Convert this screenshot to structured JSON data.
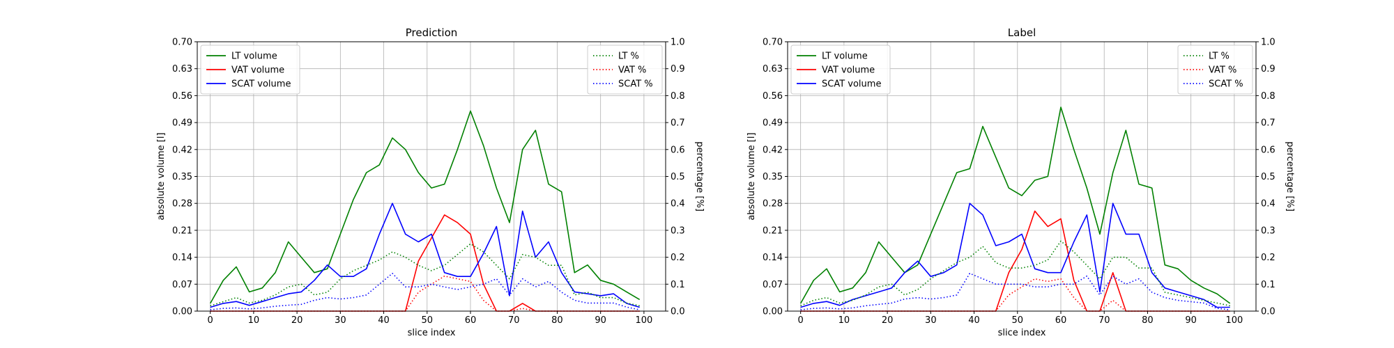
{
  "chart_data": [
    {
      "type": "line",
      "title": "Prediction",
      "xlabel": "slice index",
      "ylabel": "absolute volume [l]",
      "y2label": "percentage [%]",
      "xlim": [
        -3,
        105
      ],
      "ylim": [
        0,
        0.7
      ],
      "y2lim": [
        0,
        1.0
      ],
      "xticks": [
        "0",
        "10",
        "20",
        "30",
        "40",
        "50",
        "60",
        "70",
        "80",
        "90",
        "100"
      ],
      "yticks": [
        "0.00",
        "0.07",
        "0.14",
        "0.21",
        "0.28",
        "0.35",
        "0.42",
        "0.49",
        "0.56",
        "0.63",
        "0.70"
      ],
      "y2ticks": [
        "0.0",
        "0.1",
        "0.2",
        "0.3",
        "0.4",
        "0.5",
        "0.6",
        "0.7",
        "0.8",
        "0.9",
        "1.0"
      ],
      "grid": true,
      "legend_left_position": "top-left",
      "legend_right_position": "top-right",
      "x": [
        0,
        3,
        6,
        9,
        12,
        15,
        18,
        21,
        24,
        27,
        30,
        33,
        36,
        39,
        42,
        45,
        48,
        51,
        54,
        57,
        60,
        63,
        66,
        69,
        72,
        75,
        78,
        81,
        84,
        87,
        90,
        93,
        96,
        99
      ],
      "series": [
        {
          "name": "LT volume",
          "axis": "left",
          "color": "#008000",
          "style": "solid",
          "values": [
            0.02,
            0.08,
            0.115,
            0.05,
            0.06,
            0.1,
            0.18,
            0.14,
            0.1,
            0.11,
            0.2,
            0.29,
            0.36,
            0.38,
            0.45,
            0.42,
            0.36,
            0.32,
            0.33,
            0.42,
            0.52,
            0.43,
            0.32,
            0.23,
            0.42,
            0.47,
            0.33,
            0.31,
            0.1,
            0.12,
            0.08,
            0.07,
            0.05,
            0.03
          ]
        },
        {
          "name": "VAT volume",
          "axis": "left",
          "color": "#ff0000",
          "style": "solid",
          "values": [
            0.0,
            0.0,
            0.0,
            0.0,
            0.0,
            0.0,
            0.0,
            0.0,
            0.0,
            0.0,
            0.0,
            0.0,
            0.0,
            0.0,
            0.0,
            0.0,
            0.13,
            0.19,
            0.25,
            0.23,
            0.2,
            0.07,
            0.0,
            0.0,
            0.02,
            0.0,
            0.0,
            0.0,
            0.0,
            0.0,
            0.0,
            0.0,
            0.0,
            0.0
          ]
        },
        {
          "name": "SCAT volume",
          "axis": "left",
          "color": "#0000ff",
          "style": "solid",
          "values": [
            0.01,
            0.02,
            0.025,
            0.015,
            0.025,
            0.035,
            0.045,
            0.05,
            0.08,
            0.12,
            0.09,
            0.09,
            0.11,
            0.2,
            0.28,
            0.2,
            0.18,
            0.2,
            0.1,
            0.09,
            0.09,
            0.15,
            0.22,
            0.04,
            0.26,
            0.14,
            0.18,
            0.1,
            0.05,
            0.045,
            0.04,
            0.045,
            0.02,
            0.01
          ]
        },
        {
          "name": "LT %",
          "axis": "right",
          "color": "#008000",
          "style": "dotted",
          "values": [
            0.02,
            0.035,
            0.05,
            0.03,
            0.04,
            0.06,
            0.09,
            0.1,
            0.06,
            0.07,
            0.12,
            0.15,
            0.17,
            0.19,
            0.22,
            0.2,
            0.17,
            0.15,
            0.17,
            0.21,
            0.25,
            0.22,
            0.17,
            0.12,
            0.21,
            0.2,
            0.17,
            0.17,
            0.06,
            0.07,
            0.05,
            0.05,
            0.03,
            0.02
          ]
        },
        {
          "name": "VAT %",
          "axis": "right",
          "color": "#ff0000",
          "style": "dotted",
          "values": [
            0.0,
            0.0,
            0.0,
            0.0,
            0.0,
            0.0,
            0.0,
            0.0,
            0.0,
            0.0,
            0.0,
            0.0,
            0.0,
            0.0,
            0.0,
            0.0,
            0.07,
            0.1,
            0.13,
            0.12,
            0.11,
            0.04,
            0.0,
            0.0,
            0.01,
            0.0,
            0.0,
            0.0,
            0.0,
            0.0,
            0.0,
            0.0,
            0.0,
            0.0
          ]
        },
        {
          "name": "SCAT %",
          "axis": "right",
          "color": "#0000ff",
          "style": "dotted",
          "values": [
            0.005,
            0.01,
            0.012,
            0.008,
            0.012,
            0.018,
            0.022,
            0.025,
            0.04,
            0.05,
            0.045,
            0.05,
            0.06,
            0.1,
            0.14,
            0.09,
            0.09,
            0.1,
            0.09,
            0.08,
            0.09,
            0.1,
            0.12,
            0.06,
            0.12,
            0.09,
            0.11,
            0.07,
            0.04,
            0.03,
            0.03,
            0.03,
            0.015,
            0.005
          ]
        }
      ]
    },
    {
      "type": "line",
      "title": "Label",
      "xlabel": "slice index",
      "ylabel": "absolute volume [l]",
      "y2label": "percentage [%]",
      "xlim": [
        -3,
        105
      ],
      "ylim": [
        0,
        0.7
      ],
      "y2lim": [
        0,
        1.0
      ],
      "xticks": [
        "0",
        "10",
        "20",
        "30",
        "40",
        "50",
        "60",
        "70",
        "80",
        "90",
        "100"
      ],
      "yticks": [
        "0.00",
        "0.07",
        "0.14",
        "0.21",
        "0.28",
        "0.35",
        "0.42",
        "0.49",
        "0.56",
        "0.63",
        "0.70"
      ],
      "y2ticks": [
        "0.0",
        "0.1",
        "0.2",
        "0.3",
        "0.4",
        "0.5",
        "0.6",
        "0.7",
        "0.8",
        "0.9",
        "1.0"
      ],
      "grid": true,
      "legend_left_position": "top-left",
      "legend_right_position": "top-right",
      "x": [
        0,
        3,
        6,
        9,
        12,
        15,
        18,
        21,
        24,
        27,
        30,
        33,
        36,
        39,
        42,
        45,
        48,
        51,
        54,
        57,
        60,
        63,
        66,
        69,
        72,
        75,
        78,
        81,
        84,
        87,
        90,
        93,
        96,
        99
      ],
      "series": [
        {
          "name": "LT volume",
          "axis": "left",
          "color": "#008000",
          "style": "solid",
          "values": [
            0.02,
            0.08,
            0.11,
            0.05,
            0.06,
            0.1,
            0.18,
            0.14,
            0.1,
            0.12,
            0.2,
            0.28,
            0.36,
            0.37,
            0.48,
            0.4,
            0.32,
            0.3,
            0.34,
            0.35,
            0.53,
            0.42,
            0.32,
            0.2,
            0.36,
            0.47,
            0.33,
            0.32,
            0.12,
            0.11,
            0.08,
            0.06,
            0.045,
            0.02
          ]
        },
        {
          "name": "VAT volume",
          "axis": "left",
          "color": "#ff0000",
          "style": "solid",
          "values": [
            0.0,
            0.0,
            0.0,
            0.0,
            0.0,
            0.0,
            0.0,
            0.0,
            0.0,
            0.0,
            0.0,
            0.0,
            0.0,
            0.0,
            0.0,
            0.0,
            0.1,
            0.16,
            0.26,
            0.22,
            0.24,
            0.08,
            0.0,
            0.0,
            0.1,
            0.0,
            0.0,
            0.0,
            0.0,
            0.0,
            0.0,
            0.0,
            0.0,
            0.0
          ]
        },
        {
          "name": "SCAT volume",
          "axis": "left",
          "color": "#0000ff",
          "style": "solid",
          "values": [
            0.01,
            0.02,
            0.025,
            0.015,
            0.03,
            0.04,
            0.05,
            0.06,
            0.1,
            0.13,
            0.09,
            0.1,
            0.12,
            0.28,
            0.25,
            0.17,
            0.18,
            0.2,
            0.11,
            0.1,
            0.1,
            0.18,
            0.25,
            0.05,
            0.28,
            0.2,
            0.2,
            0.1,
            0.06,
            0.05,
            0.04,
            0.03,
            0.01,
            0.01
          ]
        },
        {
          "name": "LT %",
          "axis": "right",
          "color": "#008000",
          "style": "dotted",
          "values": [
            0.02,
            0.04,
            0.05,
            0.03,
            0.04,
            0.06,
            0.09,
            0.1,
            0.06,
            0.08,
            0.12,
            0.15,
            0.18,
            0.2,
            0.24,
            0.18,
            0.16,
            0.16,
            0.17,
            0.19,
            0.26,
            0.22,
            0.17,
            0.12,
            0.2,
            0.2,
            0.16,
            0.16,
            0.07,
            0.06,
            0.05,
            0.04,
            0.03,
            0.02
          ]
        },
        {
          "name": "VAT %",
          "axis": "right",
          "color": "#ff0000",
          "style": "dotted",
          "values": [
            0.0,
            0.0,
            0.0,
            0.0,
            0.0,
            0.0,
            0.0,
            0.0,
            0.0,
            0.0,
            0.0,
            0.0,
            0.0,
            0.0,
            0.0,
            0.0,
            0.06,
            0.09,
            0.12,
            0.11,
            0.12,
            0.05,
            0.0,
            0.0,
            0.04,
            0.0,
            0.0,
            0.0,
            0.0,
            0.0,
            0.0,
            0.0,
            0.0,
            0.0
          ]
        },
        {
          "name": "SCAT %",
          "axis": "right",
          "color": "#0000ff",
          "style": "dotted",
          "values": [
            0.005,
            0.01,
            0.012,
            0.008,
            0.012,
            0.02,
            0.025,
            0.03,
            0.045,
            0.05,
            0.045,
            0.05,
            0.06,
            0.14,
            0.12,
            0.1,
            0.1,
            0.1,
            0.09,
            0.09,
            0.1,
            0.1,
            0.13,
            0.06,
            0.13,
            0.1,
            0.12,
            0.07,
            0.05,
            0.04,
            0.035,
            0.03,
            0.01,
            0.005
          ]
        }
      ]
    }
  ]
}
